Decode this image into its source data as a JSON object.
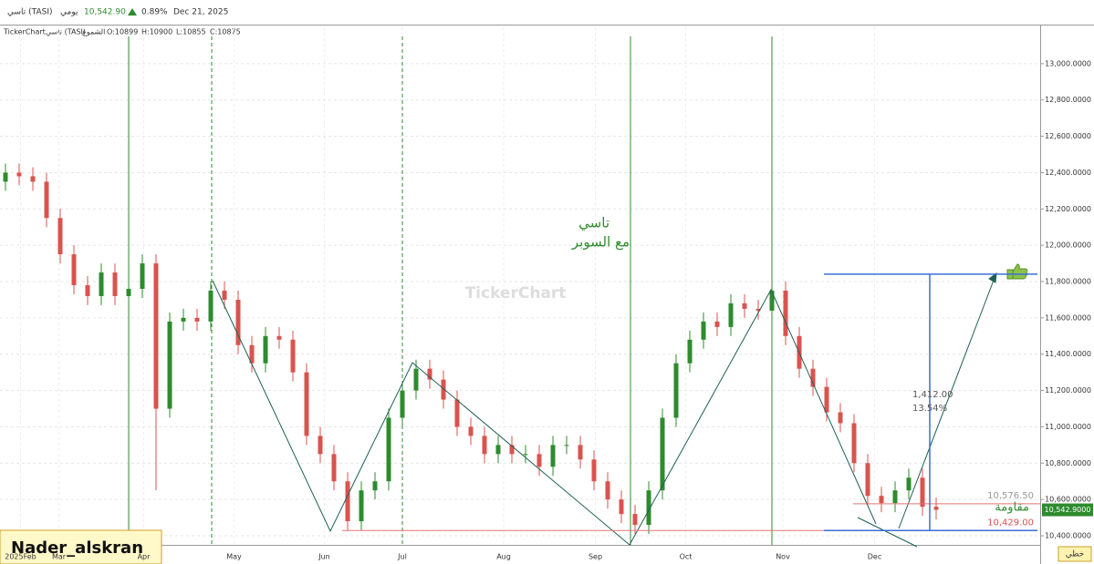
{
  "header": {
    "symbol": "تاسي (TASI)",
    "period": "يومي",
    "price": "10,542.90",
    "change": "0.89%",
    "date": "Dec 21, 2025"
  },
  "chart_data": {
    "type": "candlestick",
    "info": {
      "source": "TickerChart",
      "symbol": "تاسي (TASI)",
      "style": "الشموع",
      "open": "O:10899",
      "high": "H:10900",
      "low": "L:10855",
      "close": "C:10875"
    },
    "watermark": "TickerChart",
    "annotation_title": "تاسي",
    "annotation_subtitle": "مع السوبر",
    "author": "Nader_alskran",
    "chart_style_label": "خطي",
    "resistance_label": "مقاومة",
    "last_price": {
      "value": 10542.9,
      "label": "10,542.9000"
    },
    "levels": [
      {
        "value": 10576.5,
        "label": "10,576.50"
      },
      {
        "value": 10429,
        "label": "10,429.00"
      }
    ],
    "measure": {
      "value": 1412,
      "label": "1,412.00",
      "percent": 13.54,
      "percent_label": "13.54%"
    },
    "open": [
      12350,
      12400,
      12380,
      12350,
      12150,
      11950,
      11780,
      11720,
      11850,
      11720,
      11760,
      11900,
      11100,
      11580,
      11600,
      11580,
      11750,
      11700,
      11450,
      11350,
      11500,
      11480,
      11300,
      10950,
      10850,
      10700,
      10480,
      10650,
      10700,
      11050,
      11200,
      11320,
      11260,
      11150,
      11000,
      10950,
      10850,
      10900,
      10850,
      10850,
      10780,
      10900,
      10900,
      10820,
      10700,
      10600,
      10520,
      10460,
      10650,
      11050,
      11350,
      11480,
      11580,
      11550,
      11680,
      11650,
      11640,
      11750,
      11500,
      11320,
      11220,
      11080,
      11020,
      10800,
      10620,
      10580,
      10650,
      10720,
      10560
    ],
    "close": [
      12400,
      12380,
      12350,
      12150,
      11950,
      11780,
      11720,
      11850,
      11720,
      11760,
      11900,
      11100,
      11580,
      11600,
      11580,
      11750,
      11700,
      11450,
      11350,
      11500,
      11480,
      11300,
      10950,
      10850,
      10700,
      10480,
      10650,
      10700,
      11050,
      11200,
      11320,
      11260,
      11150,
      11000,
      10950,
      10850,
      10900,
      10850,
      10850,
      10780,
      10900,
      10900,
      10820,
      10700,
      10600,
      10520,
      10460,
      10650,
      11050,
      11350,
      11480,
      11580,
      11550,
      11680,
      11650,
      11640,
      11750,
      11500,
      11320,
      11220,
      11080,
      11020,
      10800,
      10620,
      10580,
      10650,
      10720,
      10560,
      10543
    ],
    "high": [
      12450,
      12450,
      12430,
      12400,
      12200,
      12000,
      11830,
      11900,
      11900,
      11810,
      11950,
      11950,
      11630,
      11650,
      11650,
      11800,
      11800,
      11750,
      11500,
      11550,
      11550,
      11530,
      11350,
      11000,
      10900,
      10750,
      10700,
      10750,
      11100,
      11250,
      11370,
      11370,
      11310,
      11200,
      11050,
      11000,
      10950,
      10950,
      10900,
      10900,
      10950,
      10950,
      10950,
      10870,
      10750,
      10650,
      10570,
      10700,
      11100,
      11400,
      11530,
      11630,
      11630,
      11730,
      11730,
      11700,
      11800,
      11800,
      11550,
      11370,
      11270,
      11130,
      11070,
      10850,
      10670,
      10700,
      10770,
      10770,
      10610
    ],
    "low": [
      12300,
      12330,
      12300,
      12100,
      11900,
      11730,
      11670,
      11670,
      11670,
      11670,
      11710,
      10650,
      11050,
      11530,
      11530,
      11530,
      11650,
      11400,
      11300,
      11300,
      11430,
      11250,
      10900,
      10800,
      10650,
      10430,
      10430,
      10600,
      10650,
      11000,
      11150,
      11210,
      11100,
      10950,
      10900,
      10800,
      10800,
      10800,
      10800,
      10730,
      10730,
      10850,
      10770,
      10650,
      10550,
      10470,
      10410,
      10410,
      10600,
      11000,
      11300,
      11430,
      11500,
      11500,
      11600,
      11590,
      11590,
      11450,
      11270,
      11170,
      11030,
      10970,
      10750,
      10570,
      10530,
      10530,
      10600,
      10510,
      10490
    ],
    "up_color": "#2e8b2e",
    "down_color": "#d9534f",
    "ylim": [
      10350,
      13200
    ],
    "yticks": [
      {
        "value": 10400,
        "label": "10,400.0000"
      },
      {
        "value": 10600,
        "label": "10,600.0000"
      },
      {
        "value": 10800,
        "label": "10,800.0000"
      },
      {
        "value": 11000,
        "label": "11,000.0000"
      },
      {
        "value": 11200,
        "label": "11,200.0000"
      },
      {
        "value": 11400,
        "label": "11,400.0000"
      },
      {
        "value": 11600,
        "label": "11,600.0000"
      },
      {
        "value": 11800,
        "label": "11,800.0000"
      },
      {
        "value": 12000,
        "label": "12,000.0000"
      },
      {
        "value": 12200,
        "label": "12,200.0000"
      },
      {
        "value": 12400,
        "label": "12,400.0000"
      },
      {
        "value": 12600,
        "label": "12,600.0000"
      },
      {
        "value": 12800,
        "label": "12,800.0000"
      },
      {
        "value": 13000,
        "label": "13,000.0000"
      }
    ],
    "xlim": [
      -0.4,
      75.6
    ],
    "xticks": [
      {
        "value": 1.1,
        "label": "2025Feb"
      },
      {
        "value": 3.9,
        "label": "Mar"
      },
      {
        "value": 10.1,
        "label": "Apr"
      },
      {
        "value": 16.7,
        "label": "May"
      },
      {
        "value": 23.3,
        "label": "Jun"
      },
      {
        "value": 29,
        "label": "Jul"
      },
      {
        "value": 36.4,
        "label": "Aug"
      },
      {
        "value": 43.1,
        "label": "Sep"
      },
      {
        "value": 49.7,
        "label": "Oct"
      },
      {
        "value": 56.8,
        "label": "Nov"
      },
      {
        "value": 63.5,
        "label": "Dec"
      }
    ],
    "grid": true
  }
}
